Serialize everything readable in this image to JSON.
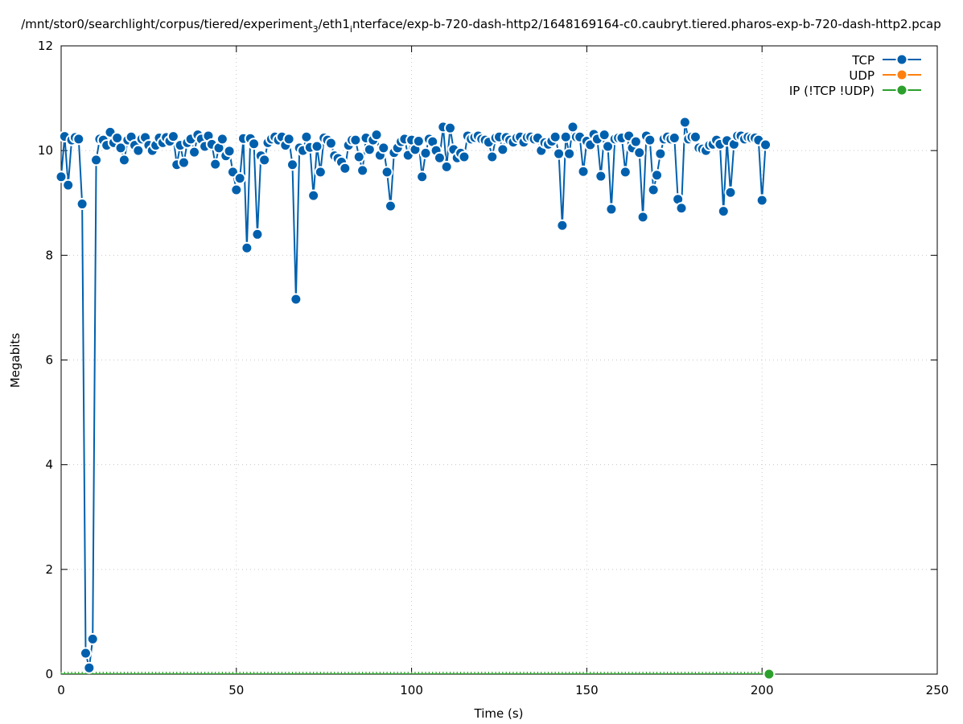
{
  "chart_data": {
    "type": "line",
    "title": {
      "pre": "/mnt/stor0/searchlight/corpus/tiered/experiment",
      "sub1": "3",
      "mid": "/eth1",
      "sub2": "i",
      "post": "nterface/exp-b-720-dash-http2/1648169164-c0.caubryt.tiered.pharos-exp-b-720-dash-http2.pcap"
    },
    "xlabel": "Time (s)",
    "ylabel": "Megabits",
    "xlim": [
      0,
      250
    ],
    "ylim": [
      0,
      12
    ],
    "xticks": [
      "0",
      "50",
      "100",
      "150",
      "200",
      "250"
    ],
    "yticks": [
      "0",
      "2",
      "4",
      "6",
      "8",
      "10",
      "12"
    ],
    "grid": true,
    "legend_position": "top-right",
    "series": [
      {
        "name": "TCP",
        "color": "#0060ad",
        "x_start": 0,
        "x_step": 1,
        "values": [
          9.5,
          10.27,
          9.34,
          10.2,
          10.25,
          10.22,
          8.98,
          0.4,
          0.12,
          0.67,
          9.82,
          10.22,
          10.2,
          10.1,
          10.35,
          10.15,
          10.24,
          10.05,
          9.82,
          10.2,
          10.26,
          10.1,
          10.0,
          10.22,
          10.25,
          10.1,
          10.0,
          10.1,
          10.24,
          10.15,
          10.25,
          10.18,
          10.27,
          9.73,
          10.1,
          9.77,
          10.15,
          10.22,
          9.97,
          10.3,
          10.22,
          10.08,
          10.28,
          10.12,
          9.74,
          10.05,
          10.22,
          9.9,
          9.99,
          9.59,
          9.25,
          9.47,
          10.23,
          8.14,
          10.23,
          10.13,
          8.4,
          9.9,
          9.82,
          10.15,
          10.22,
          10.26,
          10.2,
          10.26,
          10.1,
          10.22,
          9.73,
          7.16,
          10.05,
          10.0,
          10.26,
          10.06,
          9.14,
          10.08,
          9.59,
          10.24,
          10.2,
          10.14,
          9.9,
          9.85,
          9.78,
          9.66,
          10.1,
          10.2,
          10.2,
          9.88,
          9.62,
          10.24,
          10.02,
          10.2,
          10.3,
          9.91,
          10.05,
          9.59,
          8.94,
          9.96,
          10.05,
          10.17,
          10.22,
          9.91,
          10.2,
          10.02,
          10.18,
          9.5,
          9.95,
          10.22,
          10.17,
          10.0,
          9.86,
          10.45,
          9.69,
          10.43,
          10.02,
          9.86,
          9.95,
          9.88,
          10.28,
          10.22,
          10.25,
          10.28,
          10.22,
          10.2,
          10.16,
          9.88,
          10.24,
          10.26,
          10.02,
          10.25,
          10.2,
          10.16,
          10.24,
          10.26,
          10.16,
          10.25,
          10.26,
          10.22,
          10.24,
          10.0,
          10.15,
          10.12,
          10.18,
          10.26,
          9.94,
          8.57,
          10.26,
          9.94,
          10.45,
          10.26,
          10.26,
          9.6,
          10.18,
          10.11,
          10.31,
          10.22,
          9.51,
          10.3,
          10.08,
          8.88,
          10.22,
          10.24,
          10.24,
          9.59,
          10.28,
          10.05,
          10.17,
          9.96,
          8.73,
          10.28,
          10.2,
          9.25,
          9.53,
          9.94,
          10.22,
          10.26,
          10.22,
          10.24,
          9.07,
          8.9,
          10.54,
          10.22,
          10.26,
          10.26,
          10.05,
          10.03,
          10.0,
          10.1,
          10.12,
          10.2,
          10.12,
          8.84,
          10.19,
          9.2,
          10.12,
          10.28,
          10.28,
          10.22,
          10.26,
          10.24,
          10.24,
          10.2,
          9.05,
          10.11
        ]
      },
      {
        "name": "UDP",
        "color": "#ff7f0e",
        "values": []
      },
      {
        "name": "IP (!TCP  !UDP)",
        "color": "#2ca02c",
        "x_start": 0,
        "x_step": 1,
        "count": 202,
        "constant_value": 0
      }
    ]
  }
}
